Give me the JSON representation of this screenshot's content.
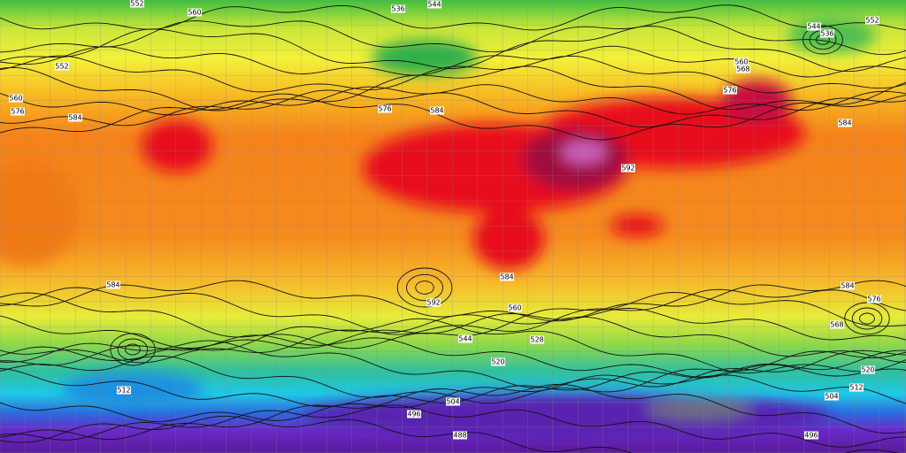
{
  "contour_labels": [
    552,
    560,
    536,
    544,
    552,
    544,
    536,
    552,
    560,
    576,
    584,
    576,
    584,
    560,
    568,
    576,
    584,
    592,
    584,
    584,
    592,
    584,
    576,
    568,
    560,
    544,
    528,
    520,
    512,
    504,
    496,
    488,
    496,
    504,
    512,
    520
  ]
}
